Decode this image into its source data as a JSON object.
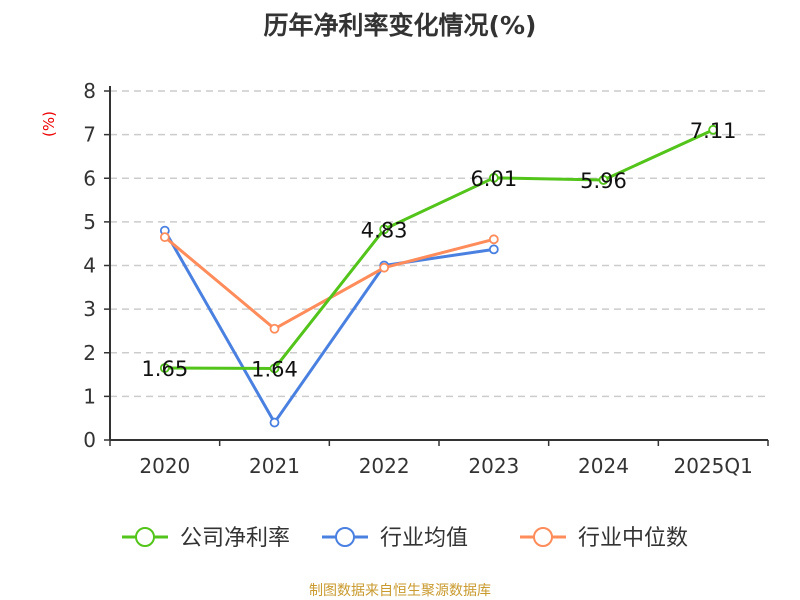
{
  "chart_data": {
    "type": "line",
    "title": "历年净利率变化情况(%)",
    "ylabel": "(%)",
    "xlabel": "",
    "categories": [
      "2020",
      "2021",
      "2022",
      "2023",
      "2024",
      "2025Q1"
    ],
    "ylim": [
      0,
      8
    ],
    "yticks": [
      0,
      1,
      2,
      3,
      4,
      5,
      6,
      7,
      8
    ],
    "grid": true,
    "legend_position": "bottom",
    "series": [
      {
        "name": "公司净利率",
        "color": "#52c41a",
        "values": [
          1.65,
          1.64,
          4.83,
          6.01,
          5.96,
          7.11
        ],
        "labels": [
          "1.65",
          "1.64",
          "4.83",
          "6.01",
          "5.96",
          "7.11"
        ]
      },
      {
        "name": "行业均值",
        "color": "#4a80e0",
        "values": [
          4.8,
          0.4,
          4.0,
          4.37,
          null,
          null
        ]
      },
      {
        "name": "行业中位数",
        "color": "#ff8c5a",
        "values": [
          4.65,
          2.55,
          3.95,
          4.6,
          null,
          null
        ]
      }
    ]
  },
  "footer": "制图数据来自恒生聚源数据库"
}
